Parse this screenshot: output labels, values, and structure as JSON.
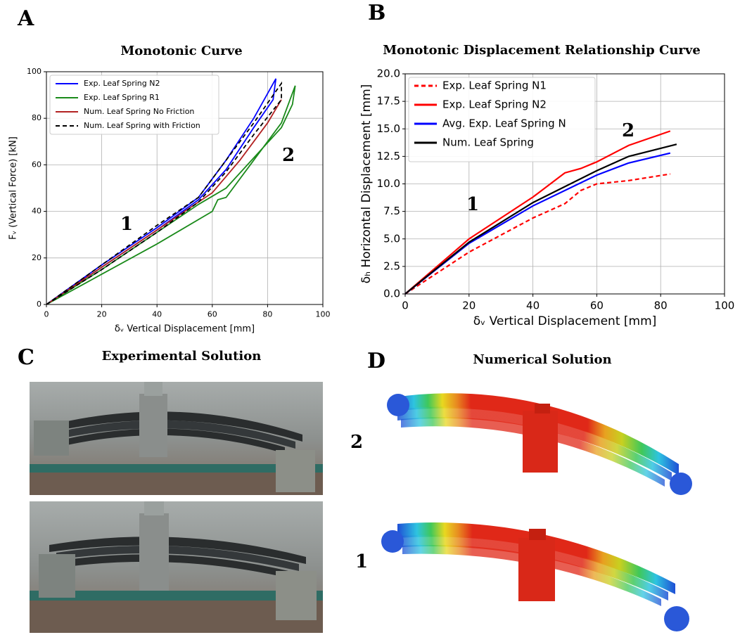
{
  "chart_data": [
    {
      "type": "line",
      "title": "Monotonic Curve",
      "xlabel": "δᵥ Vertical Displacement [mm]",
      "ylabel": "Fᵥ (Vertical Force) [kN]",
      "xlim": [
        0,
        100
      ],
      "ylim": [
        0,
        100
      ],
      "xticks": [
        0,
        20,
        40,
        60,
        80,
        100
      ],
      "yticks": [
        0,
        20,
        40,
        60,
        80,
        100
      ],
      "grid": true,
      "legend": "upper left",
      "annotations": [
        "1",
        "2"
      ],
      "series": [
        {
          "name": "Exp. Leaf Spring N2",
          "color": "#0000ff",
          "style": "solid",
          "x": [
            0,
            20,
            40,
            55,
            65,
            75,
            83,
            82,
            75,
            65,
            55,
            40,
            20,
            0
          ],
          "values": [
            0,
            17,
            33,
            46,
            62,
            80,
            97,
            88,
            76,
            58,
            45,
            32,
            16,
            0
          ]
        },
        {
          "name": "Exp. Leaf Spring R1",
          "color": "#1a8a1a",
          "style": "solid",
          "x": [
            0,
            20,
            40,
            60,
            62,
            65,
            75,
            85,
            90,
            89,
            85,
            75,
            65,
            55,
            40,
            20,
            0
          ],
          "values": [
            0,
            13,
            26,
            40,
            45,
            46,
            62,
            78,
            94,
            86,
            76,
            63,
            50,
            43,
            31,
            15,
            0
          ]
        },
        {
          "name": "Num. Leaf Spring No Friction",
          "color": "#b22222",
          "style": "solid",
          "x": [
            0,
            20,
            40,
            60,
            70,
            80,
            85
          ],
          "values": [
            0,
            16,
            32,
            48,
            62,
            78,
            88
          ]
        },
        {
          "name": "Num. Leaf Spring with Friction",
          "color": "#000000",
          "style": "dashed",
          "x": [
            0,
            20,
            40,
            55,
            65,
            75,
            85,
            85,
            75,
            65,
            55,
            40,
            20,
            0
          ],
          "values": [
            0,
            17,
            34,
            46,
            62,
            78,
            95,
            88,
            73,
            57,
            44,
            31,
            15,
            0
          ]
        }
      ]
    },
    {
      "type": "line",
      "title": "Monotonic Displacement Relationship Curve",
      "xlabel": "δᵥ Vertical Displacement [mm]",
      "ylabel": "δₕ Horizontal Displacement [mm]",
      "xlim": [
        0,
        100
      ],
      "ylim": [
        0,
        20
      ],
      "xticks": [
        0,
        20,
        40,
        60,
        80,
        100
      ],
      "yticks": [
        {
          "value": 0,
          "label": "0.0"
        },
        2.5,
        {
          "value": 5,
          "label": "5.0"
        },
        7.5,
        {
          "value": 10,
          "label": "10.0"
        },
        12.5,
        {
          "value": 15,
          "label": "15.0"
        },
        17.5,
        {
          "value": 20,
          "label": "20.0"
        }
      ],
      "grid": true,
      "legend": "upper left",
      "annotations": [
        "1",
        "2"
      ],
      "series": [
        {
          "name": "Exp. Leaf Spring N1",
          "color": "#ff0000",
          "style": "dashed",
          "x": [
            0,
            20,
            40,
            50,
            55,
            60,
            70,
            83
          ],
          "values": [
            0,
            3.8,
            6.9,
            8.2,
            9.4,
            10,
            10.3,
            10.9
          ]
        },
        {
          "name": "Exp. Leaf Spring N2",
          "color": "#ff0000",
          "style": "solid",
          "x": [
            0,
            20,
            40,
            50,
            55,
            60,
            70,
            83
          ],
          "values": [
            0,
            5,
            8.8,
            11,
            11.4,
            12,
            13.5,
            14.8
          ]
        },
        {
          "name": "Avg. Exp. Leaf Spring N",
          "color": "#0000ff",
          "style": "solid",
          "x": [
            0,
            20,
            40,
            60,
            70,
            83
          ],
          "values": [
            0,
            4.6,
            8,
            10.8,
            11.9,
            12.8
          ]
        },
        {
          "name": "Num. Leaf Spring",
          "color": "#000000",
          "style": "solid",
          "x": [
            0,
            20,
            40,
            60,
            70,
            85
          ],
          "values": [
            0,
            4.7,
            8.3,
            11.2,
            12.5,
            13.6
          ]
        }
      ]
    }
  ],
  "panel_labels": [
    "A",
    "B",
    "C",
    "D"
  ],
  "panel_c": {
    "title": "Experimental Solution"
  },
  "panel_d": {
    "title": "Numerical Solution",
    "labels": [
      "2",
      "1"
    ]
  }
}
